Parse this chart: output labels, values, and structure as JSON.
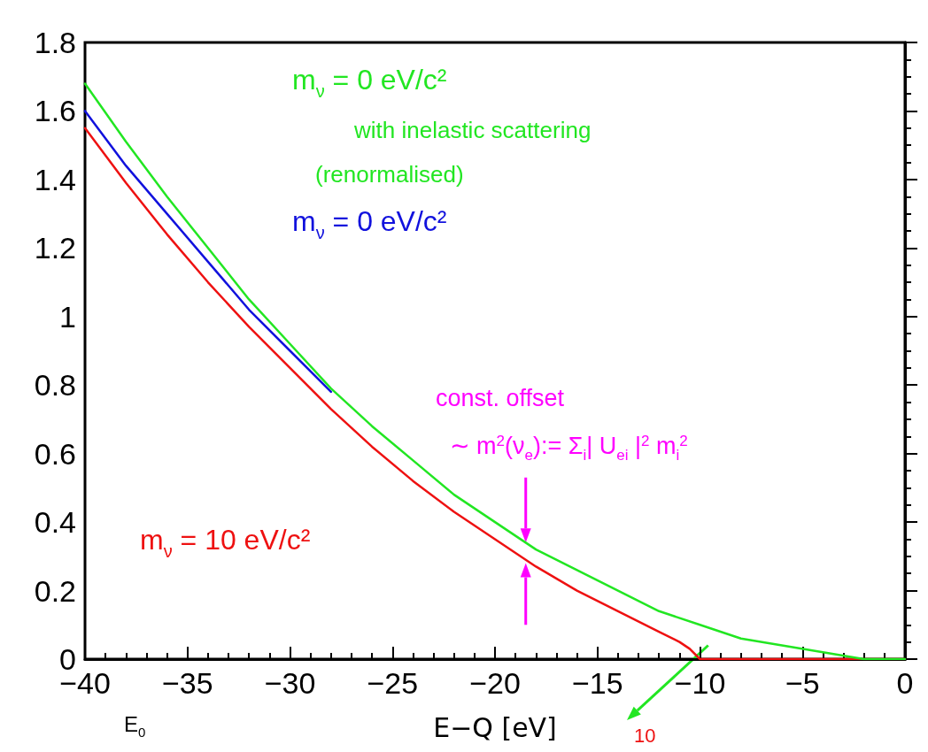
{
  "chart_data": {
    "type": "line",
    "xlabel": "E−Q [eV]",
    "xlim": [
      -40,
      0
    ],
    "xticks": [
      -40,
      -35,
      -30,
      -25,
      -20,
      -15,
      -10,
      -5,
      0
    ],
    "ylim": [
      0,
      1.8
    ],
    "yticks": [
      0,
      0.2,
      0.4,
      0.6,
      0.8,
      1,
      1.2,
      1.4,
      1.6,
      1.8
    ],
    "grid": false,
    "legend": false,
    "marker": "none",
    "line_style": "solid",
    "series": [
      {
        "name": "m$_{ν}$ = 10 eV/c²",
        "color": "#ee1111",
        "x": [
          -40,
          -38,
          -36,
          -34,
          -32,
          -30,
          -28,
          -26,
          -24,
          -22,
          -20,
          -18,
          -16,
          -14,
          -12,
          -11,
          -10.5,
          -10,
          -5,
          0
        ],
        "values": [
          1.55,
          1.39,
          1.24,
          1.1,
          0.97,
          0.85,
          0.73,
          0.62,
          0.52,
          0.43,
          0.35,
          0.27,
          0.2,
          0.14,
          0.08,
          0.05,
          0.03,
          0,
          0,
          0
        ]
      },
      {
        "name": "m$_{ν}$ = 0 eV/c²",
        "color": "#1111dd",
        "x": [
          -40,
          -38,
          -36,
          -34,
          -32,
          -30,
          -28
        ],
        "values": [
          1.6,
          1.44,
          1.3,
          1.16,
          1.02,
          0.9,
          0.78
        ]
      },
      {
        "name": "m$_{ν}$ = 0 eV/c²",
        "color": "#22e622",
        "x": [
          -40,
          -38,
          -36,
          -34,
          -32,
          -30,
          -28,
          -26,
          -24,
          -22,
          -20,
          -18,
          -16,
          -14,
          -12,
          -10,
          -8,
          -6,
          -4,
          -2,
          0
        ],
        "values": [
          1.68,
          1.51,
          1.35,
          1.2,
          1.05,
          0.92,
          0.79,
          0.68,
          0.58,
          0.48,
          0.4,
          0.32,
          0.26,
          0.2,
          0.14,
          0.1,
          0.06,
          0.04,
          0.02,
          0,
          0
        ]
      }
    ],
    "annotations": [
      "with inelastic scattering",
      "(renormalised)",
      "const. offset",
      "∼ m$^{2}$(ν$_{e}$):= Σ$_{i}$| U$_{ei}$ |$^{2}$ m$_{i}$$^{2}$",
      "E$_{0}$",
      "10"
    ]
  }
}
